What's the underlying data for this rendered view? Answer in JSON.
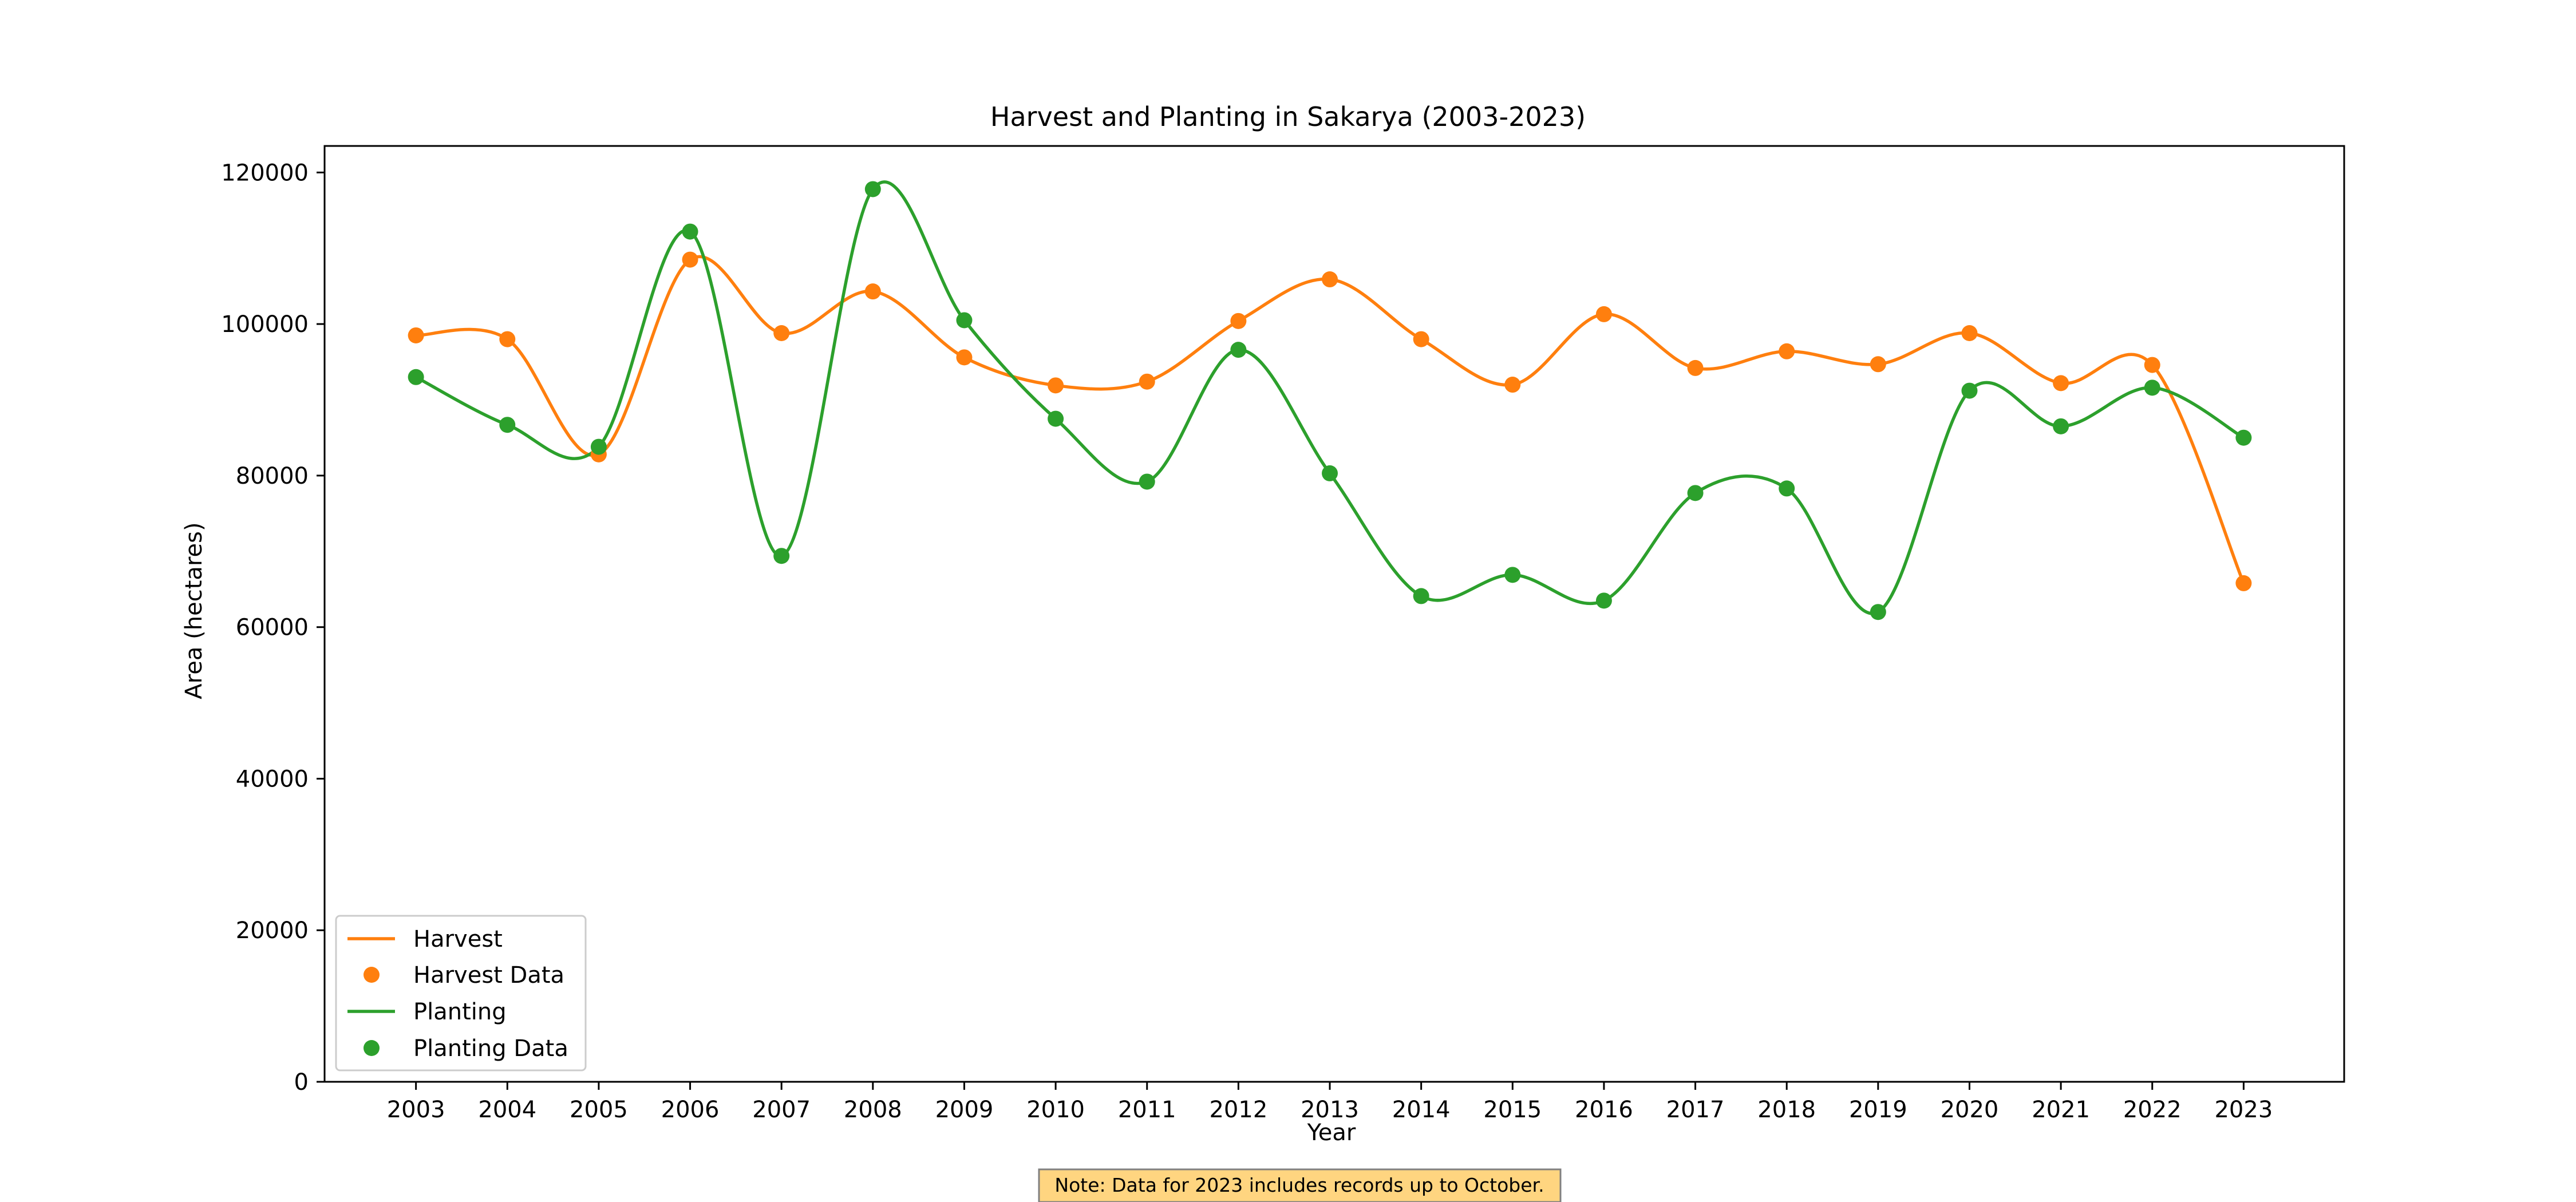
{
  "chart_data": {
    "type": "line",
    "title": "Harvest and Planting in Sakarya (2003-2023)",
    "xlabel": "Year",
    "ylabel": "Area (hectares)",
    "x": [
      2003,
      2004,
      2005,
      2006,
      2007,
      2008,
      2009,
      2010,
      2011,
      2012,
      2013,
      2014,
      2015,
      2016,
      2017,
      2018,
      2019,
      2020,
      2021,
      2022,
      2023
    ],
    "xticks": [
      "2003",
      "2004",
      "2005",
      "2006",
      "2007",
      "2008",
      "2009",
      "2010",
      "2011",
      "2012",
      "2013",
      "2014",
      "2015",
      "2016",
      "2017",
      "2018",
      "2019",
      "2020",
      "2021",
      "2022",
      "2023"
    ],
    "yticks": [
      "0",
      "20000",
      "40000",
      "60000",
      "80000",
      "100000",
      "120000"
    ],
    "ylim": [
      0,
      123500
    ],
    "grid": false,
    "legend_position": "lower-left",
    "series": [
      {
        "name": "Harvest",
        "marker_name": "Harvest Data",
        "color": "#ff7f0e",
        "values": [
          98500,
          98000,
          82800,
          108500,
          98800,
          104300,
          95600,
          91900,
          92400,
          100400,
          105900,
          98000,
          92000,
          101300,
          94200,
          96400,
          94700,
          98800,
          92200,
          94600,
          65800
        ]
      },
      {
        "name": "Planting",
        "marker_name": "Planting Data",
        "color": "#2ca02c",
        "values": [
          93000,
          86700,
          83800,
          112200,
          69400,
          117800,
          100500,
          87500,
          79200,
          96600,
          80300,
          64100,
          66900,
          63500,
          77700,
          78300,
          62000,
          91200,
          86500,
          91600,
          85000
        ]
      }
    ]
  },
  "note": "Note: Data for 2023 includes records up to October.",
  "note_color": "#ffd580"
}
